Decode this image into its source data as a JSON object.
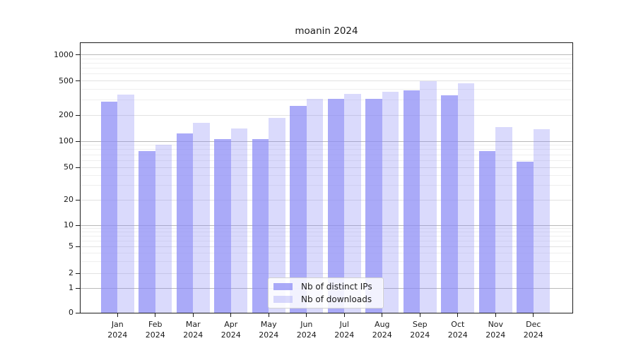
{
  "title": "moanin 2024",
  "legend": {
    "items": [
      {
        "label": "Nb of distinct IPs",
        "color": "#8989f5",
        "opacity": 0.72
      },
      {
        "label": "Nb of downloads",
        "color": "#8989f5",
        "opacity": 0.31
      }
    ]
  },
  "axes": {
    "yticks": [
      0,
      1,
      2,
      5,
      10,
      20,
      50,
      100,
      200,
      500,
      1000
    ],
    "xticks": [
      {
        "month": "Jan",
        "year": "2024"
      },
      {
        "month": "Feb",
        "year": "2024"
      },
      {
        "month": "Mar",
        "year": "2024"
      },
      {
        "month": "Apr",
        "year": "2024"
      },
      {
        "month": "May",
        "year": "2024"
      },
      {
        "month": "Jun",
        "year": "2024"
      },
      {
        "month": "Jul",
        "year": "2024"
      },
      {
        "month": "Aug",
        "year": "2024"
      },
      {
        "month": "Sep",
        "year": "2024"
      },
      {
        "month": "Oct",
        "year": "2024"
      },
      {
        "month": "Nov",
        "year": "2024"
      },
      {
        "month": "Dec",
        "year": "2024"
      }
    ]
  },
  "chart_data": {
    "type": "bar",
    "title": "moanin 2024",
    "categories": [
      "Jan 2024",
      "Feb 2024",
      "Mar 2024",
      "Apr 2024",
      "May 2024",
      "Jun 2024",
      "Jul 2024",
      "Aug 2024",
      "Sep 2024",
      "Oct 2024",
      "Nov 2024",
      "Dec 2024"
    ],
    "series": [
      {
        "name": "Nb of distinct IPs",
        "color": "#a9a9f4",
        "values": [
          285,
          77,
          123,
          106,
          106,
          255,
          308,
          310,
          386,
          343,
          77,
          58
        ]
      },
      {
        "name": "Nb of downloads",
        "color": "#dbdbf9",
        "values": [
          350,
          91,
          164,
          140,
          185,
          308,
          353,
          375,
          494,
          467,
          146,
          138
        ]
      }
    ],
    "xlabel": "",
    "ylabel": "",
    "yscale": "symlog",
    "ylim": [
      0,
      1400
    ],
    "yticks": [
      0,
      1,
      2,
      5,
      10,
      20,
      50,
      100,
      200,
      500,
      1000
    ],
    "grid": true,
    "legend_position": "lower center"
  }
}
